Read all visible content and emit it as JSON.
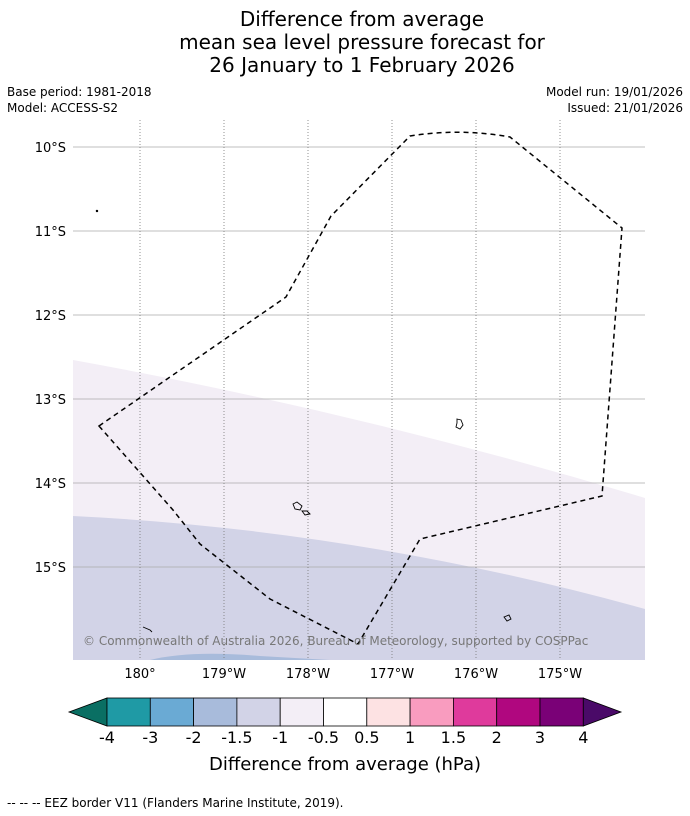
{
  "header": {
    "title_lines": [
      "Difference from average",
      "mean sea level pressure forecast for",
      "26 January to 1 February 2026"
    ],
    "base_period": "Base period: 1981-2018",
    "model": "Model: ACCESS-S2",
    "model_run": "Model run: 19/01/2026",
    "issued": "Issued: 21/01/2026"
  },
  "map": {
    "lat_labels": [
      "10°S",
      "11°S",
      "12°S",
      "13°S",
      "14°S",
      "15°S"
    ],
    "lon_labels": [
      "180°",
      "179°W",
      "178°W",
      "177°W",
      "176°W",
      "175°W"
    ],
    "copyright": "© Commonwealth of Australia 2026, Bureau of Meteorology, supported by COSPPac",
    "border_color": "#000000",
    "grid_color": "#aaaaaa"
  },
  "colorbar": {
    "title": "Difference from average (hPa)",
    "tick_labels": [
      "-4",
      "-3",
      "-2",
      "-1.5",
      "-1",
      "-0.5",
      "0.5",
      "1",
      "1.5",
      "2",
      "3",
      "4"
    ],
    "colors": [
      "#0a6f63",
      "#1f9aa5",
      "#6aaad4",
      "#a8bbdb",
      "#d2d3e7",
      "#f3eef6",
      "#ffffff",
      "#fde2e3",
      "#f99cbf",
      "#df3a9c",
      "#b0077f",
      "#7a0177",
      "#4a0a68"
    ]
  },
  "footer": {
    "legend": "--  --  -- EEZ border V11 (Flanders Marine Institute, 2019)."
  }
}
